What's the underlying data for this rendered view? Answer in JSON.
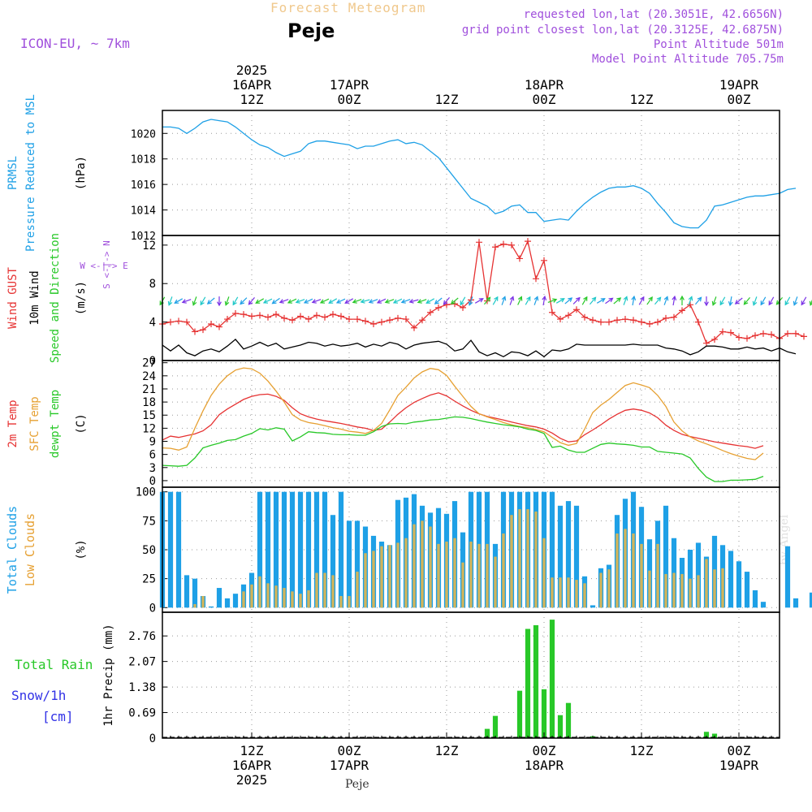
{
  "header": {
    "super_title": "Forecast Meteogram",
    "location": "Peje",
    "model": "ICON-EU, ~ 7km",
    "requested": "requested lon,lat (20.3051E, 42.6656N)",
    "grid_point": "grid point closest lon,lat (20.3125E, 42.6875N)",
    "point_altitude": "Point Altitude 501m",
    "model_altitude": "Model Point Altitude 705.75m",
    "footer_location": "Peje",
    "watermark": "by Angel"
  },
  "time_axis": {
    "top": [
      {
        "hour": 12,
        "lines": [
          "2025",
          "16APR",
          "12Z"
        ]
      },
      {
        "hour": 24,
        "lines": [
          "17APR",
          "00Z"
        ]
      },
      {
        "hour": 36,
        "lines": [
          "12Z"
        ]
      },
      {
        "hour": 48,
        "lines": [
          "18APR",
          "00Z"
        ]
      },
      {
        "hour": 60,
        "lines": [
          "12Z"
        ]
      },
      {
        "hour": 72,
        "lines": [
          "19APR",
          "00Z"
        ]
      }
    ],
    "bottom": [
      {
        "hour": 12,
        "lines": [
          "12Z",
          "16APR",
          "2025"
        ]
      },
      {
        "hour": 24,
        "lines": [
          "00Z",
          "17APR"
        ]
      },
      {
        "hour": 36,
        "lines": [
          "12Z"
        ]
      },
      {
        "hour": 48,
        "lines": [
          "00Z",
          "18APR"
        ]
      },
      {
        "hour": 60,
        "lines": [
          "12Z"
        ]
      },
      {
        "hour": 72,
        "lines": [
          "00Z",
          "19APR"
        ]
      }
    ],
    "start_hour": 1,
    "end_hour": 77
  },
  "colors": {
    "pressure": "#1ea0e6",
    "gust": "#e63232",
    "wind": "#000000",
    "t2m": "#e63232",
    "sfc": "#e6a032",
    "dewpt": "#28c828",
    "total_clouds": "#1ea0e6",
    "low_clouds": "#d2b45a",
    "rain": "#28c828",
    "snow": "#3232e6",
    "purple": "#a050dc",
    "orange_title": "#f0c88c",
    "grid": "#999999"
  },
  "chart_data": [
    {
      "type": "line",
      "panel": "pressure",
      "label_lines": [
        {
          "text": "PRMSL",
          "color": "pressure"
        },
        {
          "text": "Pressure Reduced to MSL",
          "color": "pressure"
        }
      ],
      "ylabel": "(hPa)",
      "ylim": [
        1012,
        1021.8
      ],
      "yticks": [
        1012,
        1014,
        1016,
        1018,
        1020
      ],
      "series": [
        {
          "name": "PRMSL",
          "color": "pressure",
          "marker": "none",
          "x_start": 1,
          "x_step": 1,
          "values": [
            1020.5,
            1020.5,
            1020.4,
            1020.0,
            1020.4,
            1020.9,
            1021.1,
            1021.0,
            1020.9,
            1020.5,
            1020.0,
            1019.5,
            1019.1,
            1018.9,
            1018.5,
            1018.2,
            1018.4,
            1018.6,
            1019.2,
            1019.4,
            1019.4,
            1019.3,
            1019.2,
            1019.1,
            1018.8,
            1019.0,
            1019.0,
            1019.2,
            1019.4,
            1019.5,
            1019.2,
            1019.3,
            1019.1,
            1018.6,
            1018.1,
            1017.3,
            1016.5,
            1015.7,
            1014.9,
            1014.6,
            1014.3,
            1013.7,
            1013.9,
            1014.3,
            1014.4,
            1013.8,
            1013.8,
            1013.1,
            1013.2,
            1013.3,
            1013.2,
            1013.9,
            1014.5,
            1015.0,
            1015.4,
            1015.7,
            1015.8,
            1015.8,
            1015.9,
            1015.7,
            1015.3,
            1014.5,
            1013.8,
            1013.0,
            1012.7,
            1012.6,
            1012.6,
            1013.2,
            1014.3,
            1014.4,
            1014.6,
            1014.8,
            1015.0,
            1015.1,
            1015.1,
            1015.2,
            1015.3,
            1015.6,
            1015.7
          ]
        }
      ]
    },
    {
      "type": "line",
      "panel": "wind",
      "label_lines": [
        {
          "text": "Wind GUST",
          "color": "gust"
        },
        {
          "text": "10m Wind",
          "color": "wind"
        },
        {
          "text": "Speed and Direction",
          "color": "dewpt"
        }
      ],
      "ylabel": "(m/s)",
      "compass": [
        "N",
        "W <-|-> E",
        "S"
      ],
      "ylim": [
        0,
        13
      ],
      "yticks": [
        0,
        4,
        8,
        12
      ],
      "series": [
        {
          "name": "Wind GUST",
          "color": "gust",
          "marker": "plus",
          "x_start": 1,
          "x_step": 1,
          "values": [
            3.8,
            4.0,
            4.1,
            4.0,
            3.0,
            3.2,
            3.8,
            3.5,
            4.3,
            4.9,
            4.8,
            4.6,
            4.7,
            4.5,
            4.8,
            4.4,
            4.2,
            4.6,
            4.3,
            4.7,
            4.5,
            4.8,
            4.6,
            4.3,
            4.3,
            4.1,
            3.8,
            4.0,
            4.2,
            4.4,
            4.3,
            3.4,
            4.2,
            5.0,
            5.5,
            5.8,
            5.9,
            5.5,
            6.3,
            12.3,
            6.2,
            11.8,
            12.1,
            12.0,
            10.6,
            12.4,
            8.5,
            10.4,
            5.0,
            4.3,
            4.7,
            5.3,
            4.5,
            4.2,
            4.0,
            4.0,
            4.2,
            4.3,
            4.2,
            4.0,
            3.8,
            4.0,
            4.4,
            4.5,
            5.2,
            5.8,
            4.0,
            1.8,
            2.2,
            3.0,
            2.9,
            2.4,
            2.3,
            2.6,
            2.8,
            2.7,
            2.3,
            2.8,
            2.8,
            2.5
          ]
        },
        {
          "name": "10m Wind",
          "color": "wind",
          "marker": "none",
          "x_start": 1,
          "x_step": 1,
          "values": [
            1.6,
            1.0,
            1.6,
            0.8,
            0.5,
            1.0,
            1.2,
            0.9,
            1.5,
            2.2,
            1.2,
            1.5,
            1.9,
            1.5,
            1.8,
            1.2,
            1.4,
            1.6,
            1.9,
            1.8,
            1.5,
            1.7,
            1.5,
            1.6,
            1.8,
            1.4,
            1.7,
            1.5,
            1.9,
            1.7,
            1.2,
            1.6,
            1.8,
            1.9,
            2.0,
            1.7,
            1.0,
            1.2,
            2.1,
            0.9,
            0.5,
            0.8,
            0.4,
            0.9,
            0.8,
            0.5,
            1.0,
            0.4,
            1.1,
            1.0,
            1.2,
            1.7,
            1.6,
            1.6,
            1.6,
            1.6,
            1.6,
            1.6,
            1.7,
            1.6,
            1.6,
            1.6,
            1.3,
            1.2,
            1.0,
            0.6,
            0.9,
            1.5,
            1.5,
            1.4,
            1.2,
            1.2,
            1.4,
            1.2,
            1.3,
            1.0,
            1.3,
            0.9,
            0.7
          ]
        }
      ],
      "barb_row_value": 6.2,
      "barb_angles_deg": [
        210,
        200,
        240,
        250,
        200,
        210,
        230,
        180,
        200,
        210,
        225,
        220,
        240,
        245,
        235,
        250,
        245,
        250,
        245,
        250,
        245,
        240,
        245,
        240,
        250,
        255,
        250,
        245,
        250,
        245,
        250,
        255,
        250,
        240,
        230,
        220,
        230,
        210,
        200,
        60,
        40,
        30,
        20,
        20,
        25,
        30,
        20,
        10,
        70,
        60,
        50,
        45,
        30,
        40,
        60,
        55,
        50,
        20,
        10,
        30,
        35,
        40,
        20,
        10,
        0,
        20,
        40,
        180,
        200,
        210,
        190,
        230,
        220,
        200,
        210,
        210,
        220,
        210,
        200,
        210,
        200
      ]
    },
    {
      "type": "line",
      "panel": "temperature",
      "label_lines": [
        {
          "text": "2m Temp",
          "color": "t2m"
        },
        {
          "text": "SFC Temp",
          "color": "sfc"
        },
        {
          "text": "dewpt Temp",
          "color": "dewpt"
        }
      ],
      "ylabel": "(C)",
      "ylim": [
        -1.5,
        27.5
      ],
      "yticks": [
        0,
        3,
        6,
        9,
        12,
        15,
        18,
        21,
        24,
        27
      ],
      "series": [
        {
          "name": "2m Temp",
          "color": "t2m",
          "marker": "none",
          "x_start": 1,
          "x_step": 1,
          "values": [
            9.3,
            10.2,
            9.9,
            10.3,
            10.7,
            11.4,
            12.8,
            15.1,
            16.4,
            17.5,
            18.6,
            19.3,
            19.7,
            19.8,
            19.3,
            18.4,
            16.7,
            15.3,
            14.6,
            14.1,
            13.7,
            13.4,
            13.1,
            12.7,
            12.3,
            12.0,
            11.5,
            11.8,
            13.4,
            15.2,
            16.7,
            17.9,
            18.8,
            19.6,
            20.1,
            19.4,
            18.2,
            17.1,
            16.1,
            15.3,
            14.7,
            14.3,
            13.9,
            13.4,
            13.0,
            12.6,
            12.3,
            11.8,
            10.9,
            9.7,
            8.9,
            9.1,
            10.5,
            11.6,
            12.8,
            14.1,
            15.2,
            16.1,
            16.4,
            16.1,
            15.5,
            14.4,
            12.7,
            11.5,
            10.6,
            10.1,
            9.7,
            9.3,
            8.9,
            8.6,
            8.3,
            8.0,
            7.8,
            7.4,
            8.0
          ]
        },
        {
          "name": "SFC Temp",
          "color": "sfc",
          "marker": "none",
          "x_start": 1,
          "x_step": 1,
          "values": [
            7.5,
            7.4,
            7.0,
            7.7,
            12.0,
            16.0,
            19.5,
            22.1,
            24.0,
            25.3,
            25.8,
            25.6,
            24.6,
            22.8,
            20.5,
            18.0,
            15.1,
            13.9,
            13.3,
            13.0,
            12.6,
            12.1,
            11.8,
            11.3,
            11.1,
            10.8,
            11.5,
            13.1,
            16.2,
            19.5,
            21.4,
            23.5,
            24.9,
            25.7,
            25.4,
            24.1,
            21.6,
            19.3,
            17.0,
            15.3,
            14.6,
            14.0,
            13.3,
            12.8,
            12.4,
            12.1,
            11.7,
            11.2,
            9.9,
            8.7,
            8.1,
            8.5,
            11.8,
            15.6,
            17.3,
            18.6,
            20.2,
            21.8,
            22.4,
            21.9,
            21.3,
            19.5,
            17.0,
            13.4,
            11.4,
            10.0,
            9.1,
            8.4,
            7.7,
            6.9,
            6.2,
            5.6,
            5.1,
            4.8,
            6.3
          ]
        },
        {
          "name": "dewpt Temp",
          "color": "dewpt",
          "marker": "none",
          "x_start": 1,
          "x_step": 1,
          "values": [
            3.5,
            3.4,
            3.3,
            3.5,
            5.2,
            7.5,
            8.1,
            8.6,
            9.2,
            9.4,
            10.2,
            10.8,
            11.9,
            11.6,
            12.1,
            11.8,
            9.1,
            10.0,
            11.2,
            11.0,
            10.9,
            10.6,
            10.5,
            10.5,
            10.4,
            10.4,
            11.2,
            12.4,
            13.0,
            13.1,
            13.0,
            13.4,
            13.6,
            13.9,
            14.0,
            14.3,
            14.6,
            14.5,
            14.2,
            13.8,
            13.4,
            13.1,
            12.8,
            12.6,
            12.3,
            11.8,
            11.5,
            10.8,
            7.6,
            7.9,
            7.0,
            6.5,
            6.5,
            7.4,
            8.3,
            8.6,
            8.4,
            8.3,
            8.1,
            7.7,
            7.7,
            6.7,
            6.5,
            6.3,
            6.1,
            5.2,
            2.8,
            0.8,
            -0.2,
            -0.2,
            0.1,
            0.1,
            0.2,
            0.3,
            1.0
          ]
        }
      ]
    },
    {
      "type": "bar",
      "panel": "clouds",
      "label_lines": [
        {
          "text": "Total Clouds",
          "color": "total_clouds"
        },
        {
          "text": "Low Clouds",
          "color": "sfc"
        }
      ],
      "ylabel": "(%)",
      "ylim": [
        -4,
        104
      ],
      "yticks": [
        0,
        25,
        50,
        75,
        100
      ],
      "series": [
        {
          "name": "Total Clouds",
          "color": "total_clouds",
          "x_start": 1,
          "x_step": 1,
          "values": [
            100,
            100,
            100,
            28,
            25,
            10,
            1,
            17,
            8,
            12,
            20,
            30,
            100,
            100,
            100,
            100,
            100,
            100,
            100,
            100,
            100,
            80,
            100,
            75,
            75,
            70,
            62,
            57,
            54,
            93,
            95,
            98,
            88,
            82,
            86,
            81,
            92,
            65,
            100,
            100,
            100,
            55,
            100,
            100,
            100,
            100,
            100,
            100,
            100,
            88,
            92,
            88,
            27,
            2,
            34,
            37,
            80,
            94,
            100,
            87,
            59,
            75,
            88,
            60,
            43,
            50,
            56,
            44,
            62,
            54,
            49,
            40,
            31,
            15,
            5,
            0,
            0,
            53,
            8,
            0,
            13
          ]
        },
        {
          "name": "Low Clouds",
          "color": "low_clouds",
          "x_start": 1,
          "x_step": 1,
          "values": [
            0,
            0,
            0,
            0,
            3,
            10,
            0,
            0,
            0,
            0,
            14,
            20,
            27,
            21,
            19,
            17,
            14,
            12,
            15,
            30,
            30,
            28,
            10,
            10,
            31,
            47,
            49,
            53,
            54,
            56,
            60,
            72,
            75,
            70,
            55,
            57,
            60,
            39,
            57,
            55,
            55,
            44,
            64,
            80,
            85,
            85,
            83,
            60,
            26,
            26,
            26,
            24,
            21,
            0,
            30,
            33,
            64,
            68,
            64,
            55,
            32,
            55,
            29,
            30,
            29,
            25,
            28,
            42,
            33,
            34,
            0,
            0,
            0,
            0,
            0,
            0,
            0,
            0,
            0,
            0
          ]
        }
      ]
    },
    {
      "type": "bar",
      "panel": "precip",
      "label_lines": [
        {
          "text": "Total  Rain",
          "color": "rain"
        },
        {
          "text": "Snow/1h",
          "color": "snow"
        },
        {
          "text": "[cm]",
          "color": "snow"
        }
      ],
      "ylabel": "1hr Precip (mm)",
      "ylim": [
        0,
        3.4
      ],
      "yticks": [
        0,
        0.69,
        1.38,
        2.07,
        2.76
      ],
      "ytick_labels": [
        "0",
        "0.69",
        "1.38",
        "2.07",
        "2.76"
      ],
      "series": [
        {
          "name": "Total Rain",
          "color": "rain",
          "x_start": 1,
          "x_step": 1,
          "values": [
            0,
            0,
            0,
            0,
            0,
            0,
            0,
            0,
            0,
            0,
            0,
            0,
            0,
            0,
            0,
            0,
            0,
            0,
            0,
            0,
            0.03,
            0,
            0,
            0,
            0,
            0,
            0,
            0,
            0,
            0,
            0,
            0,
            0,
            0,
            0,
            0,
            0,
            0,
            0,
            0,
            0.25,
            0.6,
            0,
            0,
            1.28,
            2.95,
            3.05,
            1.32,
            3.2,
            0.62,
            0.95,
            0,
            0,
            0.05,
            0,
            0,
            0,
            0,
            0,
            0,
            0,
            0,
            0,
            0,
            0,
            0,
            0,
            0.17,
            0.12,
            0,
            0,
            0,
            0,
            0,
            0,
            0,
            0,
            0,
            0,
            0,
            0
          ]
        }
      ]
    }
  ]
}
